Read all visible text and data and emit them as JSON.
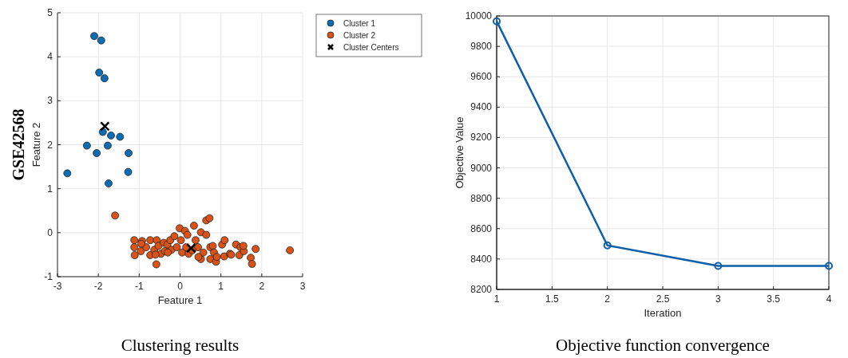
{
  "chart_data": [
    {
      "type": "scatter",
      "title": "Clustering results",
      "xlabel": "Feature 1",
      "ylabel": "Feature 2",
      "annotations": [
        "GSE42568"
      ],
      "xlim": [
        -3,
        3
      ],
      "ylim": [
        -1,
        5
      ],
      "xticks": [
        -3,
        -2,
        -1,
        0,
        1,
        2,
        3
      ],
      "yticks": [
        -1,
        0,
        1,
        2,
        3,
        4,
        5
      ],
      "grid": true,
      "legend": "top right",
      "marker": "circle",
      "series": [
        {
          "name": "Cluster 1",
          "color": "#0c6db5",
          "x": [
            -2.1,
            -1.93,
            -1.98,
            -1.85,
            -1.89,
            -1.69,
            -1.47,
            -2.28,
            -1.77,
            -2.04,
            -1.26,
            -2.76,
            -1.27,
            -1.75
          ],
          "values": [
            4.47,
            4.37,
            3.64,
            3.51,
            2.29,
            2.21,
            2.18,
            1.98,
            1.98,
            1.81,
            1.81,
            1.35,
            1.38,
            1.12
          ]
        },
        {
          "name": "Cluster 2",
          "color": "#d95319",
          "x": [
            -1.59,
            -1.12,
            -1.12,
            -1.11,
            -0.96,
            -0.93,
            -0.83,
            -0.73,
            -0.73,
            -0.63,
            -0.58,
            -0.57,
            -0.53,
            -0.47,
            -0.4,
            -0.37,
            -0.31,
            -0.24,
            -0.21,
            -0.14,
            -0.08,
            -0.01,
            0.02,
            0.05,
            0.12,
            0.18,
            0.15,
            0.21,
            0.34,
            0.38,
            0.44,
            0.51,
            0.51,
            0.57,
            0.64,
            0.64,
            0.72,
            0.74,
            0.74,
            0.8,
            0.83,
            0.88,
            1.03,
            1.09,
            1.08,
            1.22,
            1.37,
            1.48,
            1.45,
            1.56,
            1.73,
            1.76,
            1.85,
            2.69,
            -0.95,
            -0.6,
            -0.3,
            0.3,
            0.45,
            0.9,
            1.25,
            1.55
          ],
          "values": [
            0.39,
            -0.17,
            -0.33,
            -0.51,
            -0.42,
            -0.19,
            -0.33,
            -0.17,
            -0.51,
            -0.39,
            -0.72,
            -0.17,
            -0.3,
            -0.48,
            -0.23,
            -0.42,
            -0.27,
            -0.17,
            -0.39,
            -0.08,
            -0.33,
            0.1,
            -0.17,
            -0.45,
            0.04,
            -0.05,
            -0.33,
            -0.48,
            0.16,
            -0.17,
            -0.33,
            0.01,
            -0.6,
            -0.45,
            -0.05,
            0.28,
            0.33,
            -0.33,
            -0.6,
            -0.3,
            -0.45,
            -0.66,
            -0.27,
            -0.17,
            -0.54,
            -0.48,
            -0.27,
            -0.33,
            -0.51,
            -0.42,
            -0.57,
            -0.71,
            -0.37,
            -0.4,
            -0.25,
            -0.5,
            -0.45,
            -0.4,
            -0.55,
            -0.55,
            -0.5,
            -0.3
          ]
        },
        {
          "name": "Cluster Centers",
          "color": "#000000",
          "marker": "cross",
          "x": [
            -1.84,
            0.27
          ],
          "values": [
            2.42,
            -0.35
          ]
        }
      ]
    },
    {
      "type": "line",
      "title": "Objective function convergence",
      "xlabel": "Iteration",
      "ylabel": "Objective Value",
      "xlim": [
        1,
        4
      ],
      "ylim": [
        8200,
        10000
      ],
      "xticks": [
        1,
        1.5,
        2,
        2.5,
        3,
        3.5,
        4
      ],
      "yticks": [
        8200,
        8400,
        8600,
        8800,
        9000,
        9200,
        9400,
        9600,
        9800,
        10000
      ],
      "grid": true,
      "marker": "circle",
      "line_style": "solid",
      "series": [
        {
          "color": "#0c5fa8",
          "x": [
            1,
            2,
            3,
            4
          ],
          "values": [
            9965,
            8490,
            8355,
            8355
          ]
        }
      ]
    }
  ]
}
